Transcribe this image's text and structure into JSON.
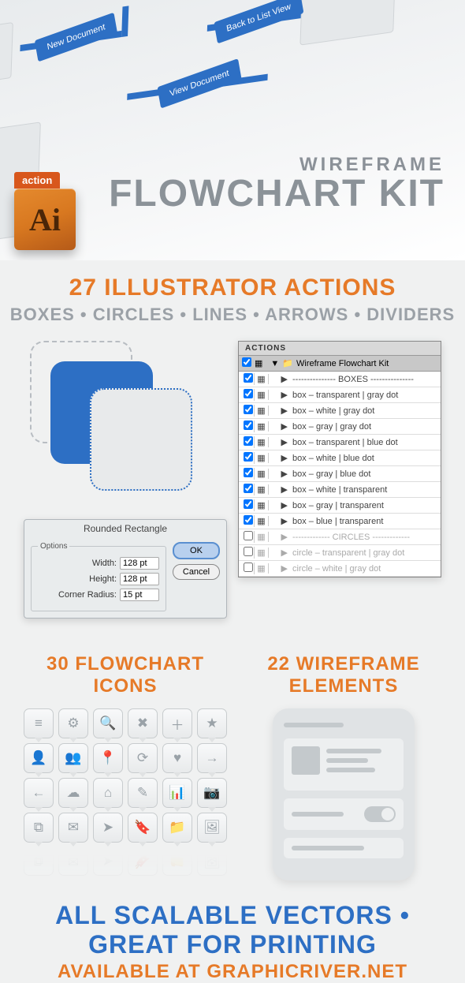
{
  "hero": {
    "subtitle": "WIREFRAME",
    "title": "FLOWCHART KIT",
    "ai_badge_label": "action",
    "ai_badge_text": "Ai",
    "flow_buttons": [
      "New Document",
      "Back to List View",
      "View Document"
    ]
  },
  "colors": {
    "orange": "#e67a28",
    "blue": "#2d6fc4",
    "gray_text": "#9ba1a7",
    "ai_gradient_top": "#e58a2e",
    "ai_gradient_bottom": "#b55a18"
  },
  "actions_section": {
    "heading": "27 ILLUSTRATOR ACTIONS",
    "subhead": "BOXES • CIRCLES • LINES • ARROWS • DIVIDERS"
  },
  "dialog": {
    "title": "Rounded Rectangle",
    "legend": "Options",
    "width_label": "Width:",
    "width_value": "128 pt",
    "height_label": "Height:",
    "height_value": "128 pt",
    "radius_label": "Corner Radius:",
    "radius_value": "15 pt",
    "ok": "OK",
    "cancel": "Cancel"
  },
  "actions_panel": {
    "tab": "ACTIONS",
    "folder": "Wireframe Flowchart Kit",
    "rows": [
      {
        "label": "--------------- BOXES ---------------",
        "faded": false
      },
      {
        "label": "box – transparent | gray dot",
        "faded": false
      },
      {
        "label": "box – white | gray dot",
        "faded": false
      },
      {
        "label": "box – gray | gray dot",
        "faded": false
      },
      {
        "label": "box – transparent | blue dot",
        "faded": false
      },
      {
        "label": "box – white | blue dot",
        "faded": false
      },
      {
        "label": "box – gray | blue dot",
        "faded": false
      },
      {
        "label": "box – white | transparent",
        "faded": false
      },
      {
        "label": "box – gray | transparent",
        "faded": false
      },
      {
        "label": "box – blue | transparent",
        "faded": false
      },
      {
        "label": "------------- CIRCLES -------------",
        "faded": true
      },
      {
        "label": "circle – transparent | gray dot",
        "faded": true
      },
      {
        "label": "circle – white | gray dot",
        "faded": true
      }
    ]
  },
  "icons_section": {
    "heading": "30 FLOWCHART ICONS",
    "icons": [
      "list-icon",
      "gear-icon",
      "search-icon",
      "close-icon",
      "plus-icon",
      "star-icon",
      "user-icon",
      "users-icon",
      "pin-icon",
      "refresh-icon",
      "heart-icon",
      "arrow-right-icon",
      "arrow-left-icon",
      "cloud-icon",
      "home-icon",
      "pencil-icon",
      "chart-icon",
      "camera-icon",
      "copy-icon",
      "mail-icon",
      "send-icon",
      "bookmark-icon",
      "folder-icon",
      "image-icon"
    ],
    "glyphs": [
      "≡",
      "⚙",
      "🔍",
      "✖",
      "＋",
      "★",
      "👤",
      "👥",
      "📍",
      "⟳",
      "♥",
      "→",
      "←",
      "☁",
      "⌂",
      "✎",
      "📊",
      "📷",
      "⧉",
      "✉",
      "➤",
      "🔖",
      "📁",
      "🖼"
    ]
  },
  "wireframe_section": {
    "heading": "22 WIREFRAME ELEMENTS"
  },
  "footer": {
    "main": "ALL SCALABLE VECTORS • GREAT FOR PRINTING",
    "sub": "AVAILABLE AT GRAPHICRIVER.NET"
  }
}
